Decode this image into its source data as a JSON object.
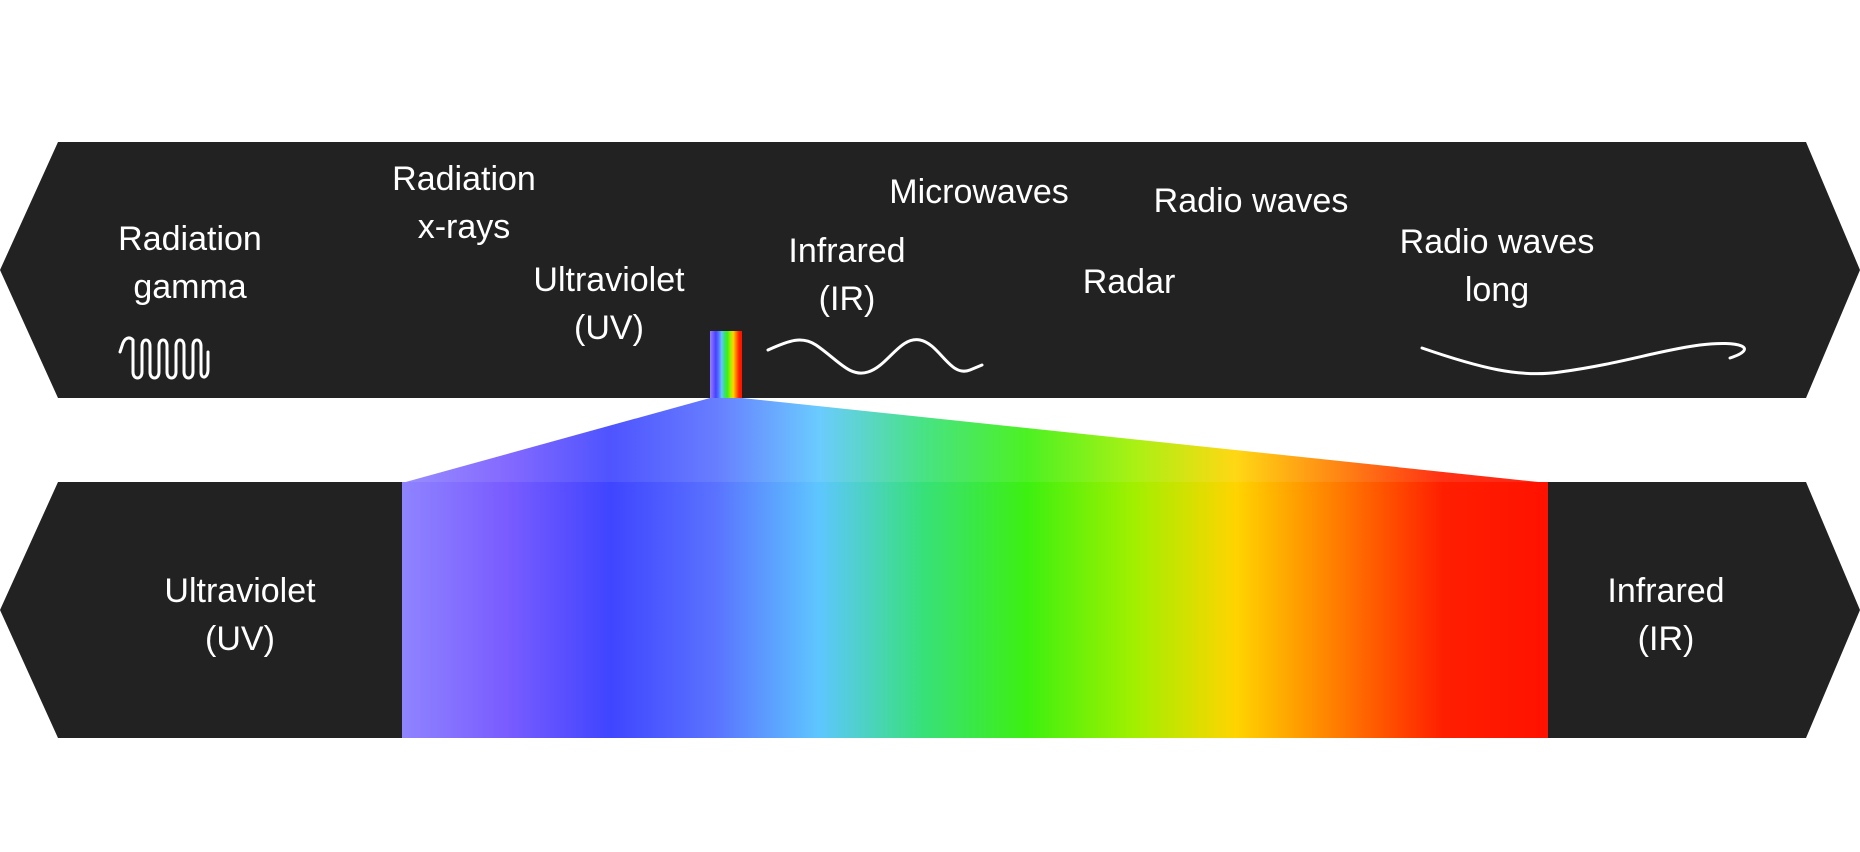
{
  "colors": {
    "band_background": "#222222",
    "wave_stroke": "#ffffff",
    "label_text": "#ffffff",
    "spectrum": [
      "#8f84ff",
      "#7a5cff",
      "#3f45ff",
      "#5a72ff",
      "#5ec6ff",
      "#38e07a",
      "#3df010",
      "#9ff000",
      "#ffd400",
      "#ff7a00",
      "#ff1e00",
      "#ff1200"
    ]
  },
  "spectrum_band": {
    "labels": {
      "gamma": [
        "Radiation",
        "gamma"
      ],
      "xrays": [
        "Radiation",
        "x-rays"
      ],
      "uv": [
        "Ultraviolet",
        "(UV)"
      ],
      "ir": [
        "Infrared",
        "(IR)"
      ],
      "microwaves": [
        "Microwaves"
      ],
      "radar": [
        "Radar"
      ],
      "radio": [
        "Radio waves"
      ],
      "long_radio": [
        "Radio waves",
        "long"
      ]
    }
  },
  "visible_band": {
    "left_label": [
      "Ultraviolet",
      "(UV)"
    ],
    "right_label": [
      "Infrared",
      "(IR)"
    ]
  }
}
